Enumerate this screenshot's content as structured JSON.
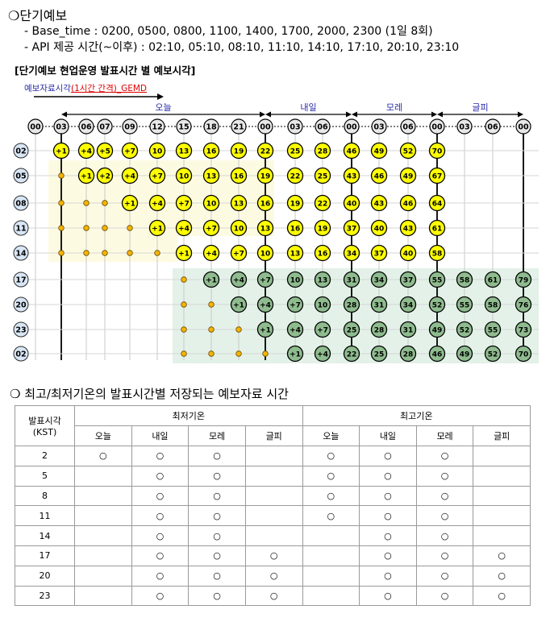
{
  "section1": {
    "title": "❍단기예보",
    "bullet1": "- Base_time : 0200, 0500, 0800, 1100, 1400, 1700, 2000, 2300 (1일 8회)",
    "bullet2": "- API 제공 시간(~이후) : 02:10, 05:10, 08:10, 11:10, 14:10, 17:10, 20:10, 23:10",
    "subtitle": "[단기예보 현업운영 발표시간 별 예보시각]",
    "arrow_label_a": "예보자료시각",
    "arrow_label_b": "(1시간 간격)",
    "arrow_label_c": "_GEMD"
  },
  "diagram": {
    "days": [
      "오늘",
      "내일",
      "모레",
      "글피"
    ],
    "header_ticks": [
      "00",
      "03",
      "06",
      "07",
      "09",
      "12",
      "15",
      "18",
      "21",
      "00",
      "03",
      "06",
      "00",
      "03",
      "06",
      "00",
      "03",
      "06",
      "00"
    ],
    "row_labels": [
      "02",
      "05",
      "08",
      "11",
      "14",
      "17",
      "20",
      "23",
      "02"
    ],
    "rows": [
      [
        "+1",
        "+4",
        "+5",
        "+7",
        "10",
        "13",
        "16",
        "19",
        "22",
        "25",
        "28",
        "46",
        "49",
        "52",
        "70",
        "",
        "",
        ""
      ],
      [
        "•",
        "+1",
        "+2",
        "+4",
        "+7",
        "10",
        "13",
        "16",
        "19",
        "22",
        "25",
        "43",
        "46",
        "49",
        "67",
        "",
        "",
        ""
      ],
      [
        "•",
        "•",
        "•",
        "+1",
        "+4",
        "+7",
        "10",
        "13",
        "16",
        "19",
        "22",
        "40",
        "43",
        "46",
        "64",
        "",
        "",
        ""
      ],
      [
        "•",
        "•",
        "•",
        "•",
        "+1",
        "+4",
        "+7",
        "10",
        "13",
        "16",
        "19",
        "37",
        "40",
        "43",
        "61",
        "",
        "",
        ""
      ],
      [
        "•",
        "•",
        "•",
        "•",
        "•",
        "+1",
        "+4",
        "+7",
        "10",
        "13",
        "16",
        "34",
        "37",
        "40",
        "58",
        "",
        "",
        ""
      ],
      [
        "",
        "",
        "",
        "",
        "",
        "•",
        "+1",
        "+4",
        "+7",
        "10",
        "13",
        "31",
        "34",
        "37",
        "55",
        "58",
        "61",
        "79"
      ],
      [
        "",
        "",
        "",
        "",
        "",
        "•",
        "•",
        "+1",
        "+4",
        "+7",
        "10",
        "28",
        "31",
        "34",
        "52",
        "55",
        "58",
        "76"
      ],
      [
        "",
        "",
        "",
        "",
        "",
        "•",
        "•",
        "•",
        "+1",
        "+4",
        "+7",
        "25",
        "28",
        "31",
        "49",
        "52",
        "55",
        "73"
      ],
      [
        "",
        "",
        "",
        "",
        "",
        "•",
        "•",
        "•",
        "•",
        "+1",
        "+4",
        "22",
        "25",
        "28",
        "46",
        "49",
        "52",
        "70"
      ]
    ],
    "colors": {
      "yellow": "#ffff00",
      "green": "#8fbc8f",
      "orange": "#f4b400",
      "blue": "#2a2aa8",
      "pale_yellow": "#fcfbe2",
      "pale_green": "#e3f1e8"
    }
  },
  "section2": {
    "title": "❍ 최고/최저기온의 발표시간별 저장되는 예보자료 시간",
    "head_col": "발표시각 (KST)",
    "group_min": "최저기온",
    "group_max": "최고기온",
    "day_cols": [
      "오늘",
      "내일",
      "모레",
      "글피",
      "오늘",
      "내일",
      "모레",
      "글피"
    ],
    "rows": [
      {
        "time": "2",
        "cells": [
          "○",
          "○",
          "○",
          "",
          "○",
          "○",
          "○",
          ""
        ]
      },
      {
        "time": "5",
        "cells": [
          "",
          "○",
          "○",
          "",
          "○",
          "○",
          "○",
          ""
        ]
      },
      {
        "time": "8",
        "cells": [
          "",
          "○",
          "○",
          "",
          "○",
          "○",
          "○",
          ""
        ]
      },
      {
        "time": "11",
        "cells": [
          "",
          "○",
          "○",
          "",
          "○",
          "○",
          "○",
          ""
        ]
      },
      {
        "time": "14",
        "cells": [
          "",
          "○",
          "○",
          "",
          "",
          "○",
          "○",
          ""
        ]
      },
      {
        "time": "17",
        "cells": [
          "",
          "○",
          "○",
          "○",
          "",
          "○",
          "○",
          "○"
        ]
      },
      {
        "time": "20",
        "cells": [
          "",
          "○",
          "○",
          "○",
          "",
          "○",
          "○",
          "○"
        ]
      },
      {
        "time": "23",
        "cells": [
          "",
          "○",
          "○",
          "○",
          "",
          "○",
          "○",
          "○"
        ]
      }
    ]
  }
}
